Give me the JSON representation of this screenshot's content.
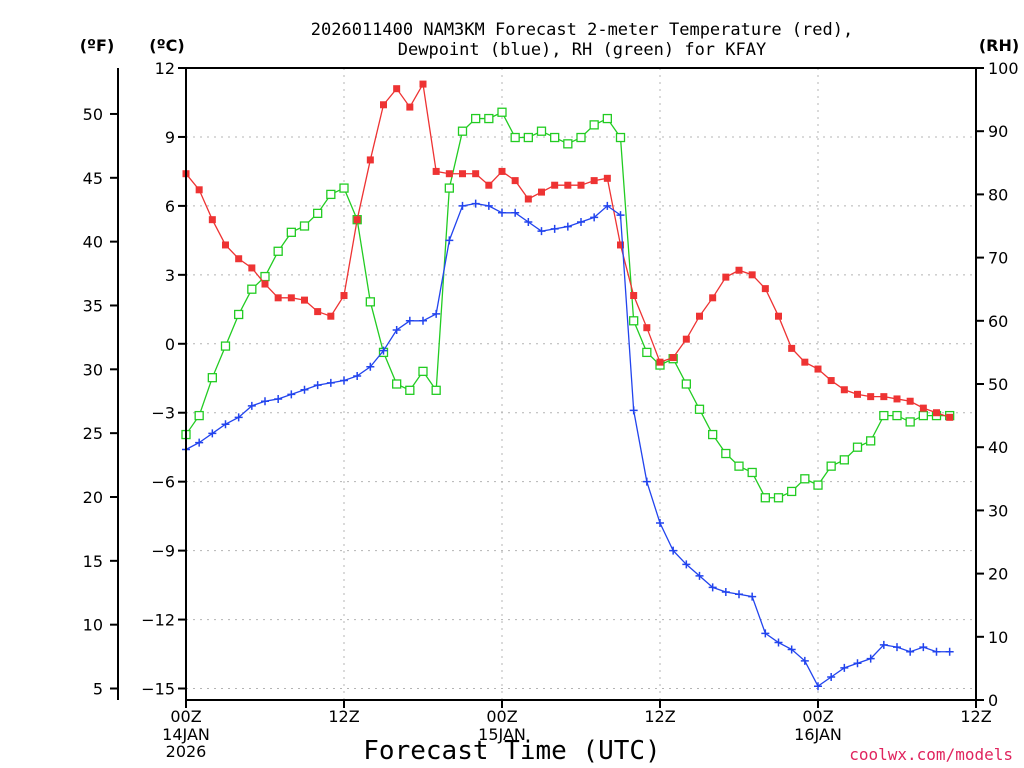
{
  "chart_data": {
    "type": "line",
    "title_line1": "2026011400 NAM3KM Forecast 2-meter Temperature (red),",
    "title_line2": "Dewpoint (blue), RH (green) for KFAY",
    "xlabel": "Forecast Time (UTC)",
    "credit": "coolwx.com/models",
    "colors": {
      "temperature": "#ee3333",
      "dewpoint": "#2244ee",
      "rh": "#22cc22"
    },
    "y_left_f": {
      "label": "(ºF)",
      "ticks": [
        "50",
        "45",
        "40",
        "35",
        "30",
        "25",
        "20",
        "15",
        "10",
        "5"
      ]
    },
    "y_left_c": {
      "label": "(ºC)",
      "ticks": [
        "12",
        "9",
        "6",
        "3",
        "0",
        "−3",
        "−6",
        "−9",
        "−12",
        "−15"
      ],
      "range": [
        -15.5,
        12.0
      ]
    },
    "y_right_rh": {
      "label": "(RH)",
      "ticks": [
        "100",
        "90",
        "80",
        "70",
        "60",
        "50",
        "40",
        "30",
        "20",
        "10",
        "0"
      ],
      "range": [
        0,
        100
      ]
    },
    "x_axis": {
      "range_hours": [
        0,
        60
      ],
      "ticks": [
        {
          "hour": 0,
          "label": "00Z",
          "date": "14JAN",
          "year": "2026"
        },
        {
          "hour": 12,
          "label": "12Z",
          "date": "",
          "year": ""
        },
        {
          "hour": 24,
          "label": "00Z",
          "date": "15JAN",
          "year": ""
        },
        {
          "hour": 36,
          "label": "12Z",
          "date": "",
          "year": ""
        },
        {
          "hour": 48,
          "label": "00Z",
          "date": "16JAN",
          "year": ""
        },
        {
          "hour": 60,
          "label": "12Z",
          "date": "",
          "year": ""
        }
      ]
    },
    "series": [
      {
        "name": "Temperature",
        "units": "C",
        "marker": "filled-square",
        "points": [
          [
            0,
            7.4
          ],
          [
            1,
            6.7
          ],
          [
            2,
            5.4
          ],
          [
            3,
            4.3
          ],
          [
            4,
            3.7
          ],
          [
            5,
            3.3
          ],
          [
            6,
            2.6
          ],
          [
            7,
            2.0
          ],
          [
            8,
            2.0
          ],
          [
            9,
            1.9
          ],
          [
            10,
            1.4
          ],
          [
            11,
            1.2
          ],
          [
            12,
            2.1
          ],
          [
            13,
            5.4
          ],
          [
            14,
            8.0
          ],
          [
            15,
            10.4
          ],
          [
            16,
            11.1
          ],
          [
            17,
            10.3
          ],
          [
            18,
            11.3
          ],
          [
            19,
            7.5
          ],
          [
            20,
            7.4
          ],
          [
            21,
            7.4
          ],
          [
            22,
            7.4
          ],
          [
            23,
            6.9
          ],
          [
            24,
            7.5
          ],
          [
            25,
            7.1
          ],
          [
            26,
            6.3
          ],
          [
            27,
            6.6
          ],
          [
            28,
            6.9
          ],
          [
            29,
            6.9
          ],
          [
            30,
            6.9
          ],
          [
            31,
            7.1
          ],
          [
            32,
            7.2
          ],
          [
            33,
            4.3
          ],
          [
            34,
            2.1
          ],
          [
            35,
            0.7
          ],
          [
            36,
            -0.8
          ],
          [
            37,
            -0.6
          ],
          [
            38,
            0.2
          ],
          [
            39,
            1.2
          ],
          [
            40,
            2.0
          ],
          [
            41,
            2.9
          ],
          [
            42,
            3.2
          ],
          [
            43,
            3.0
          ],
          [
            44,
            2.4
          ],
          [
            45,
            1.2
          ],
          [
            46,
            -0.2
          ],
          [
            47,
            -0.8
          ],
          [
            48,
            -1.1
          ],
          [
            49,
            -1.6
          ],
          [
            50,
            -2.0
          ],
          [
            51,
            -2.2
          ],
          [
            52,
            -2.3
          ],
          [
            53,
            -2.3
          ],
          [
            54,
            -2.4
          ],
          [
            55,
            -2.5
          ],
          [
            56,
            -2.8
          ],
          [
            57,
            -3.0
          ],
          [
            58,
            -3.2
          ]
        ]
      },
      {
        "name": "Dewpoint",
        "units": "C",
        "marker": "plus",
        "points": [
          [
            0,
            -4.6
          ],
          [
            1,
            -4.3
          ],
          [
            2,
            -3.9
          ],
          [
            3,
            -3.5
          ],
          [
            4,
            -3.2
          ],
          [
            5,
            -2.7
          ],
          [
            6,
            -2.5
          ],
          [
            7,
            -2.4
          ],
          [
            8,
            -2.2
          ],
          [
            9,
            -2.0
          ],
          [
            10,
            -1.8
          ],
          [
            11,
            -1.7
          ],
          [
            12,
            -1.6
          ],
          [
            13,
            -1.4
          ],
          [
            14,
            -1.0
          ],
          [
            15,
            -0.3
          ],
          [
            16,
            0.6
          ],
          [
            17,
            1.0
          ],
          [
            18,
            1.0
          ],
          [
            19,
            1.3
          ],
          [
            20,
            4.5
          ],
          [
            21,
            6.0
          ],
          [
            22,
            6.1
          ],
          [
            23,
            6.0
          ],
          [
            24,
            5.7
          ],
          [
            25,
            5.7
          ],
          [
            26,
            5.3
          ],
          [
            27,
            4.9
          ],
          [
            28,
            5.0
          ],
          [
            29,
            5.1
          ],
          [
            30,
            5.3
          ],
          [
            31,
            5.5
          ],
          [
            32,
            6.0
          ],
          [
            33,
            5.6
          ],
          [
            34,
            -2.9
          ],
          [
            35,
            -6.0
          ],
          [
            36,
            -7.8
          ],
          [
            37,
            -9.0
          ],
          [
            38,
            -9.6
          ],
          [
            39,
            -10.1
          ],
          [
            40,
            -10.6
          ],
          [
            41,
            -10.8
          ],
          [
            42,
            -10.9
          ],
          [
            43,
            -11.0
          ],
          [
            44,
            -12.6
          ],
          [
            45,
            -13.0
          ],
          [
            46,
            -13.3
          ],
          [
            47,
            -13.8
          ],
          [
            48,
            -14.9
          ],
          [
            49,
            -14.5
          ],
          [
            50,
            -14.1
          ],
          [
            51,
            -13.9
          ],
          [
            52,
            -13.7
          ],
          [
            53,
            -13.1
          ],
          [
            54,
            -13.2
          ],
          [
            55,
            -13.4
          ],
          [
            56,
            -13.2
          ],
          [
            57,
            -13.4
          ],
          [
            58,
            -13.4
          ]
        ]
      },
      {
        "name": "RH",
        "units": "%",
        "marker": "open-square",
        "points": [
          [
            0,
            42
          ],
          [
            1,
            45
          ],
          [
            2,
            51
          ],
          [
            3,
            56
          ],
          [
            4,
            61
          ],
          [
            5,
            65
          ],
          [
            6,
            67
          ],
          [
            7,
            71
          ],
          [
            8,
            74
          ],
          [
            9,
            75
          ],
          [
            10,
            77
          ],
          [
            11,
            80
          ],
          [
            12,
            81
          ],
          [
            13,
            76
          ],
          [
            14,
            63
          ],
          [
            15,
            55
          ],
          [
            16,
            50
          ],
          [
            17,
            49
          ],
          [
            18,
            52
          ],
          [
            19,
            49
          ],
          [
            20,
            81
          ],
          [
            21,
            90
          ],
          [
            22,
            92
          ],
          [
            23,
            92
          ],
          [
            24,
            93
          ],
          [
            25,
            89
          ],
          [
            26,
            89
          ],
          [
            27,
            90
          ],
          [
            28,
            89
          ],
          [
            29,
            88
          ],
          [
            30,
            89
          ],
          [
            31,
            91
          ],
          [
            32,
            92
          ],
          [
            33,
            89
          ],
          [
            34,
            60
          ],
          [
            35,
            55
          ],
          [
            36,
            53
          ],
          [
            37,
            54
          ],
          [
            38,
            50
          ],
          [
            39,
            46
          ],
          [
            40,
            42
          ],
          [
            41,
            39
          ],
          [
            42,
            37
          ],
          [
            43,
            36
          ],
          [
            44,
            32
          ],
          [
            45,
            32
          ],
          [
            46,
            33
          ],
          [
            47,
            35
          ],
          [
            48,
            34
          ],
          [
            49,
            37
          ],
          [
            50,
            38
          ],
          [
            51,
            40
          ],
          [
            52,
            41
          ],
          [
            53,
            45
          ],
          [
            54,
            45
          ],
          [
            55,
            44
          ],
          [
            56,
            45
          ],
          [
            57,
            45
          ],
          [
            58,
            45
          ]
        ]
      }
    ]
  }
}
